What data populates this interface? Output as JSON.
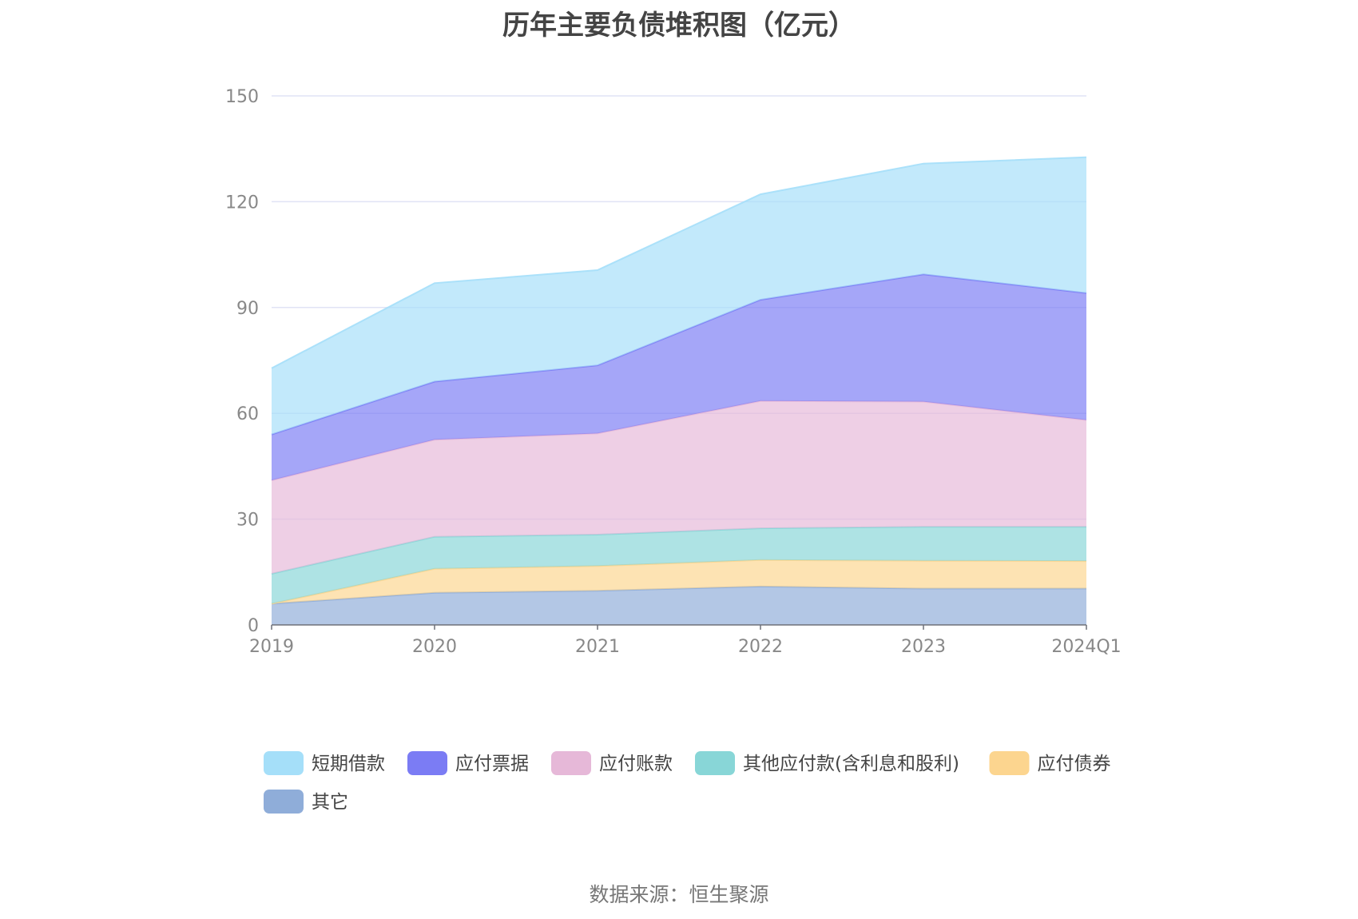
{
  "chart_data": {
    "type": "area",
    "stacked": true,
    "title": "历年主要负债堆积图（亿元）",
    "categories": [
      "2019",
      "2020",
      "2021",
      "2022",
      "2023",
      "2024Q1"
    ],
    "ylim": [
      0,
      150
    ],
    "yticks": [
      0,
      30,
      60,
      90,
      120,
      150
    ],
    "grid": true,
    "legend_position": "bottom",
    "series": [
      {
        "name": "其它",
        "color": "#8fadd9",
        "values": [
          6.0,
          9.1,
          9.7,
          10.9,
          10.3,
          10.3
        ]
      },
      {
        "name": "应付债券",
        "color": "#fcd58f",
        "values": [
          0.0,
          6.8,
          7.0,
          7.5,
          7.9,
          7.8
        ]
      },
      {
        "name": "其他应付款(含利息和股利)",
        "color": "#88d6d7",
        "values": [
          8.5,
          9.1,
          8.9,
          9.0,
          9.6,
          9.7
        ]
      },
      {
        "name": "应付账款",
        "color": "#e6b8d8",
        "values": [
          26.5,
          27.5,
          28.7,
          36.1,
          35.5,
          30.3
        ]
      },
      {
        "name": "应付票据",
        "color": "#7b7cf4",
        "values": [
          13.0,
          16.5,
          19.3,
          28.7,
          36.1,
          36.0
        ]
      },
      {
        "name": "短期借款",
        "color": "#a5dff9",
        "values": [
          18.8,
          27.9,
          27.0,
          29.9,
          31.4,
          38.5
        ]
      }
    ]
  },
  "legend_order": [
    "短期借款",
    "应付票据",
    "应付账款",
    "其他应付款(含利息和股利)",
    "应付债券",
    "其它"
  ],
  "source": "数据来源：恒生聚源"
}
